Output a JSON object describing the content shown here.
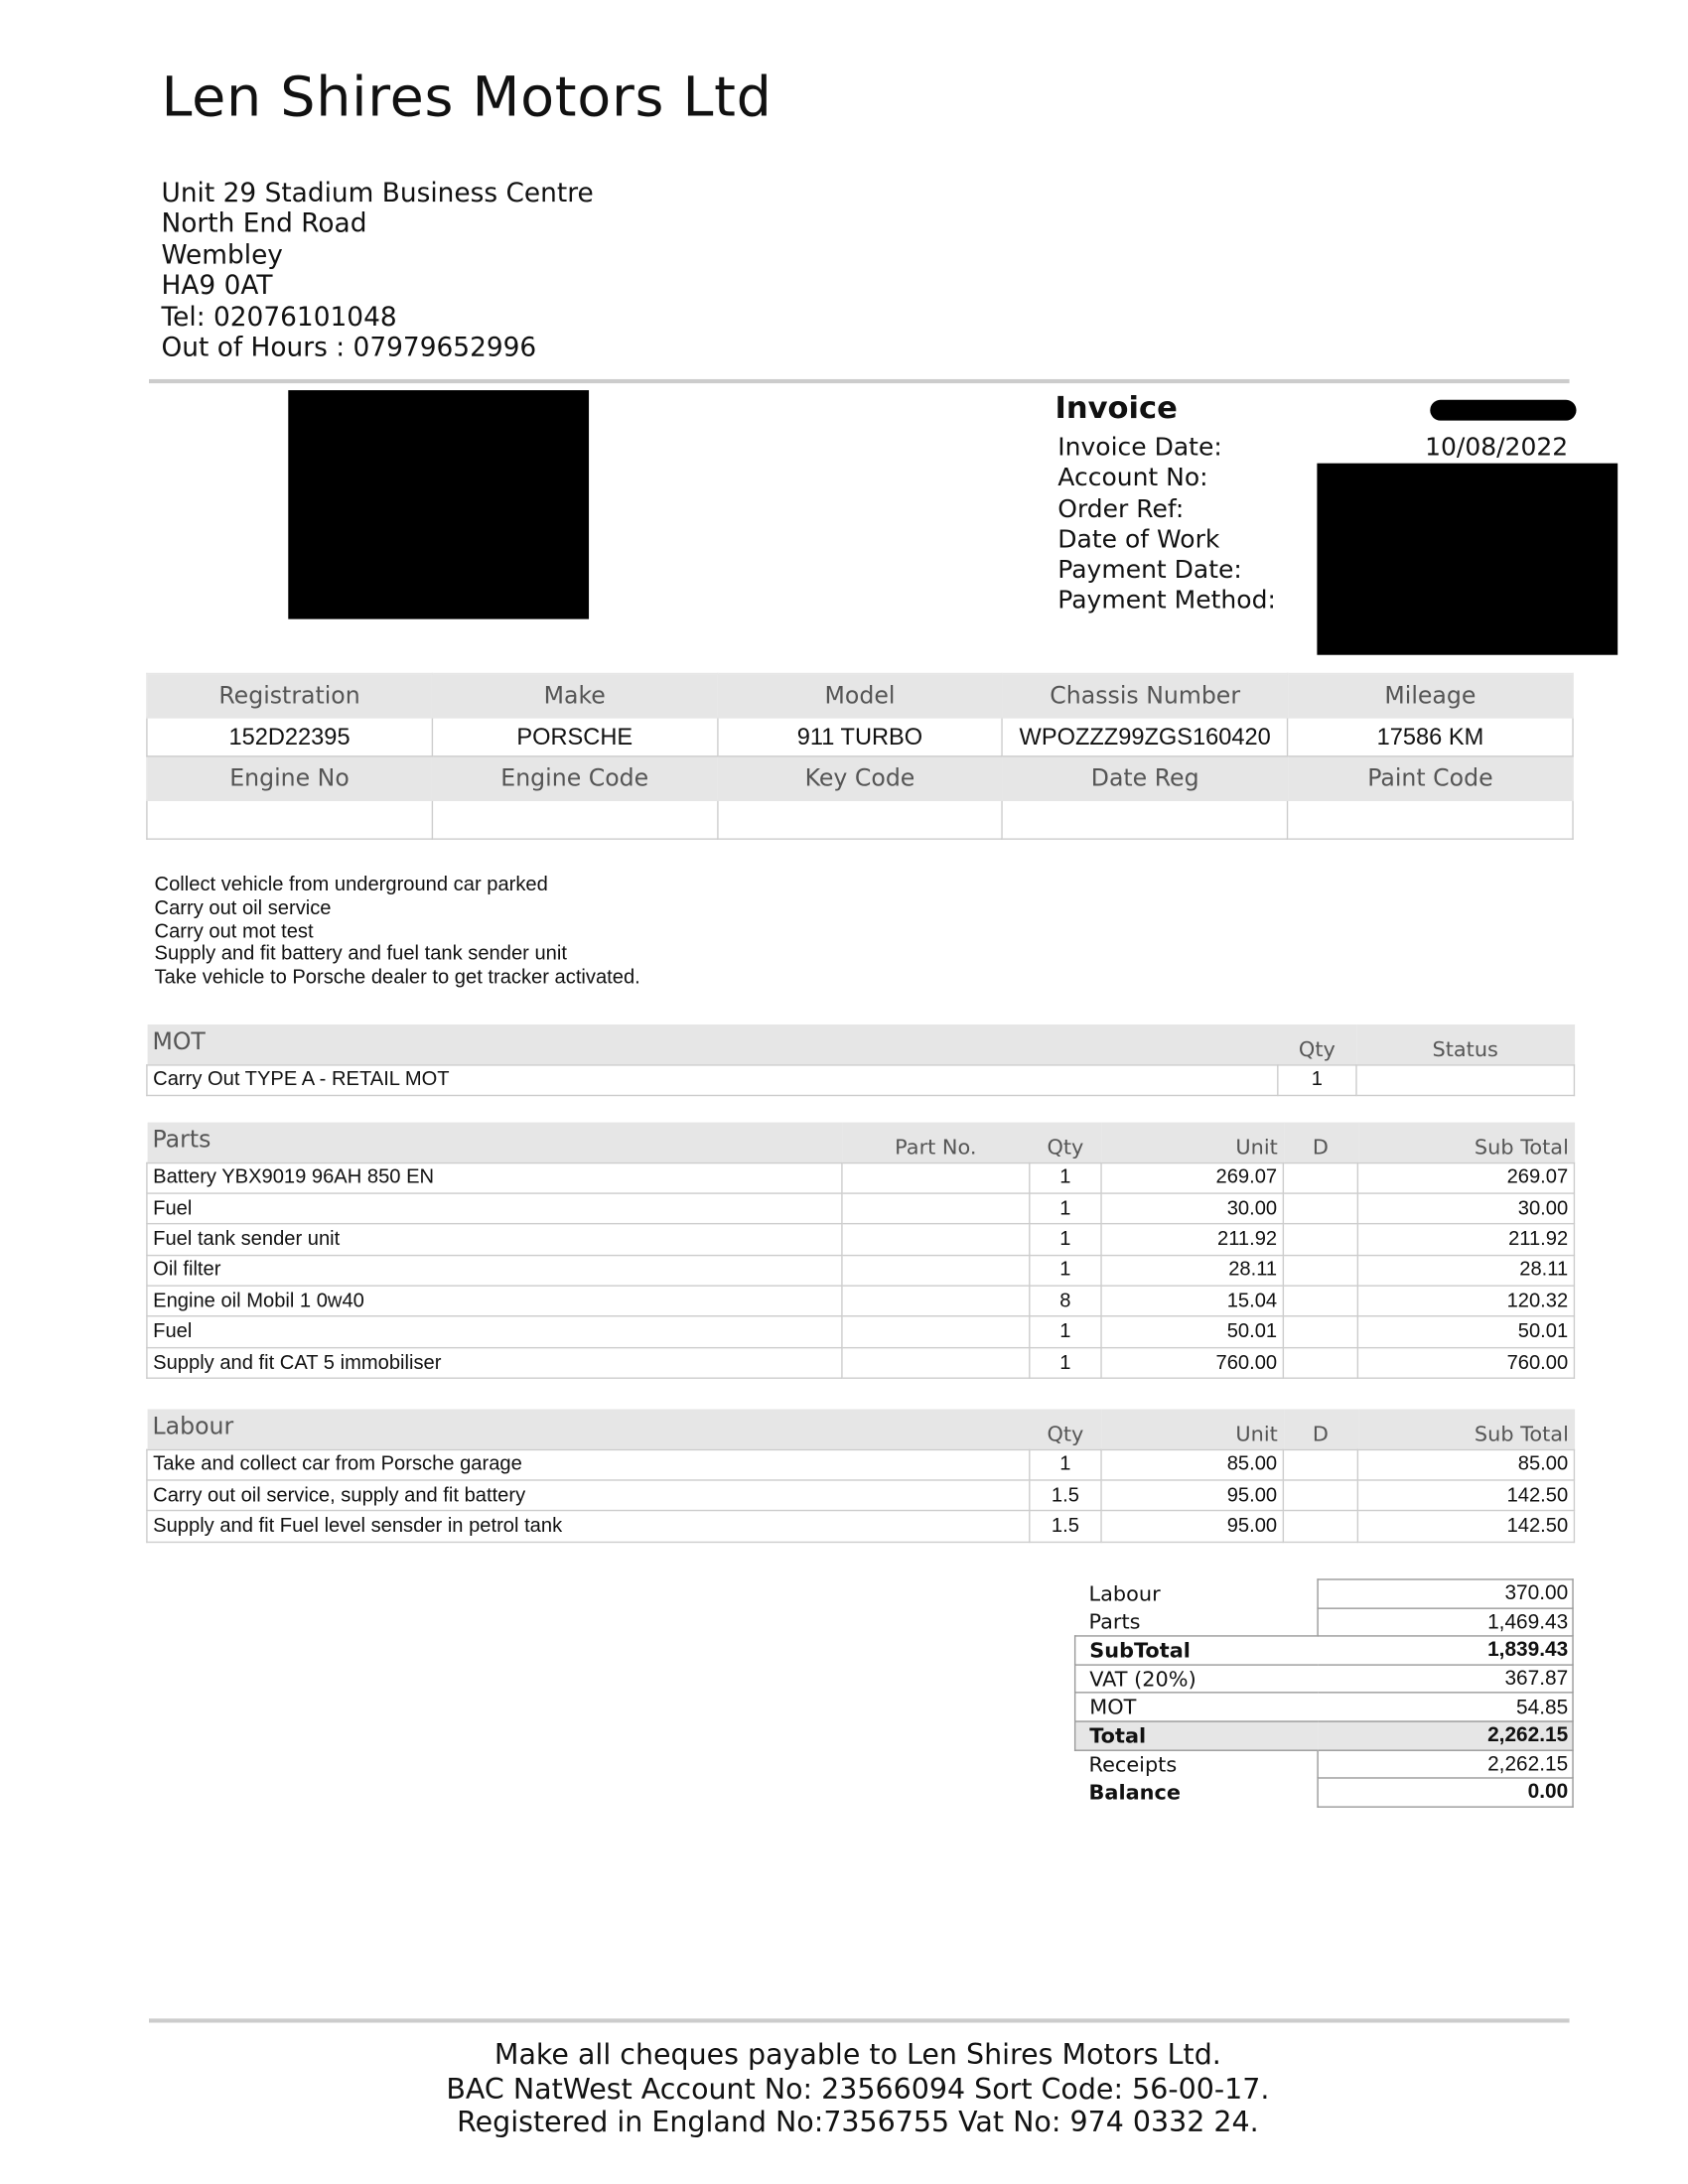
{
  "company": {
    "name": "Len Shires Motors Ltd",
    "address": [
      "Unit 29 Stadium Business Centre",
      "North End Road",
      "Wembley",
      "HA9 0AT",
      "Tel: 02076101048",
      "Out of Hours : 07979652996"
    ]
  },
  "invoice": {
    "title": "Invoice",
    "labels": [
      "Invoice Date:",
      "Account No:",
      "Order Ref:",
      "Date of Work",
      "Payment Date:",
      "Payment Method:"
    ],
    "invoice_date": "10/08/2022"
  },
  "vehicle": {
    "headers1": [
      "Registration",
      "Make",
      "Model",
      "Chassis Number",
      "Mileage"
    ],
    "values1": [
      "152D22395",
      "PORSCHE",
      "911 TURBO",
      "WPOZZZ99ZGS160420",
      "17586 KM"
    ],
    "headers2": [
      "Engine No",
      "Engine Code",
      "Key Code",
      "Date Reg",
      "Paint Code"
    ],
    "values2": [
      "",
      "",
      "",
      "",
      ""
    ]
  },
  "notes": [
    "Collect vehicle from underground car parked",
    "Carry out oil service",
    "Carry out mot test",
    "Supply and fit battery and fuel tank sender unit",
    "Take vehicle to Porsche dealer to get tracker activated."
  ],
  "mot": {
    "headers": [
      "MOT",
      "Qty",
      "Status"
    ],
    "rows": [
      [
        "Carry Out TYPE A - RETAIL MOT",
        "1",
        ""
      ]
    ]
  },
  "parts": {
    "headers": [
      "Parts",
      "Part No.",
      "Qty",
      "Unit",
      "D",
      "Sub Total"
    ],
    "rows": [
      [
        "Battery YBX9019 96AH 850 EN",
        "",
        "1",
        "269.07",
        "",
        "269.07"
      ],
      [
        "Fuel",
        "",
        "1",
        "30.00",
        "",
        "30.00"
      ],
      [
        "Fuel tank sender unit",
        "",
        "1",
        "211.92",
        "",
        "211.92"
      ],
      [
        "Oil filter",
        "",
        "1",
        "28.11",
        "",
        "28.11"
      ],
      [
        "Engine oil Mobil 1 0w40",
        "",
        "8",
        "15.04",
        "",
        "120.32"
      ],
      [
        "Fuel",
        "",
        "1",
        "50.01",
        "",
        "50.01"
      ],
      [
        "Supply and fit CAT 5 immobiliser",
        "",
        "1",
        "760.00",
        "",
        "760.00"
      ]
    ]
  },
  "labour": {
    "headers": [
      "Labour",
      "Qty",
      "Unit",
      "D",
      "Sub Total"
    ],
    "rows": [
      [
        "Take and collect car from Porsche garage",
        "1",
        "85.00",
        "",
        "85.00"
      ],
      [
        "Carry out oil service, supply and fit battery",
        "1.5",
        "95.00",
        "",
        "142.50"
      ],
      [
        "Supply and fit Fuel level sensder in petrol tank",
        "1.5",
        "95.00",
        "",
        "142.50"
      ]
    ]
  },
  "totals": [
    {
      "label": "Labour",
      "value": "370.00"
    },
    {
      "label": "Parts",
      "value": "1,469.43"
    },
    {
      "label": "SubTotal",
      "value": "1,839.43"
    },
    {
      "label": "VAT (20%)",
      "value": "367.87"
    },
    {
      "label": "MOT",
      "value": "54.85"
    },
    {
      "label": "Total",
      "value": "2,262.15"
    },
    {
      "label": "Receipts",
      "value": "2,262.15"
    },
    {
      "label": "Balance",
      "value": "0.00"
    }
  ],
  "footer": [
    "Make all cheques payable to Len Shires Motors Ltd.",
    "BAC NatWest Account No: 23566094 Sort Code: 56-00-17.",
    "Registered in England No:7356755 Vat No: 974 0332 24."
  ]
}
